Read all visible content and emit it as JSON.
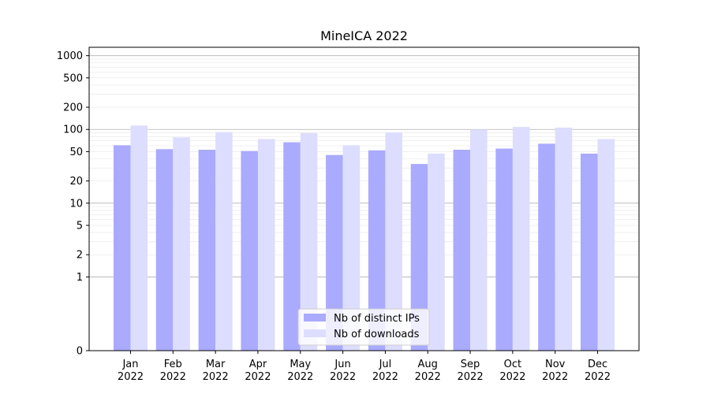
{
  "chart_data": {
    "type": "bar",
    "title": "MineICA 2022",
    "xlabel": "",
    "ylabel": "",
    "y_scale": "symlog",
    "ylim": [
      0,
      1300
    ],
    "grid": "horizontal major and minor",
    "legend_position": "bottom-center",
    "categories": [
      [
        "Jan",
        "2022"
      ],
      [
        "Feb",
        "2022"
      ],
      [
        "Mar",
        "2022"
      ],
      [
        "Apr",
        "2022"
      ],
      [
        "May",
        "2022"
      ],
      [
        "Jun",
        "2022"
      ],
      [
        "Jul",
        "2022"
      ],
      [
        "Aug",
        "2022"
      ],
      [
        "Sep",
        "2022"
      ],
      [
        "Oct",
        "2022"
      ],
      [
        "Nov",
        "2022"
      ],
      [
        "Dec",
        "2022"
      ]
    ],
    "y_ticks": [
      0,
      1,
      2,
      5,
      10,
      20,
      50,
      100,
      200,
      500,
      1000
    ],
    "series": [
      {
        "name": "Nb of distinct IPs",
        "color": "#aaaaff",
        "values": [
          61,
          54,
          53,
          51,
          67,
          45,
          52,
          34,
          53,
          55,
          64,
          47
        ]
      },
      {
        "name": "Nb of downloads",
        "color": "#ddddff",
        "values": [
          113,
          78,
          92,
          74,
          89,
          61,
          91,
          47,
          100,
          108,
          106,
          74
        ]
      }
    ]
  }
}
